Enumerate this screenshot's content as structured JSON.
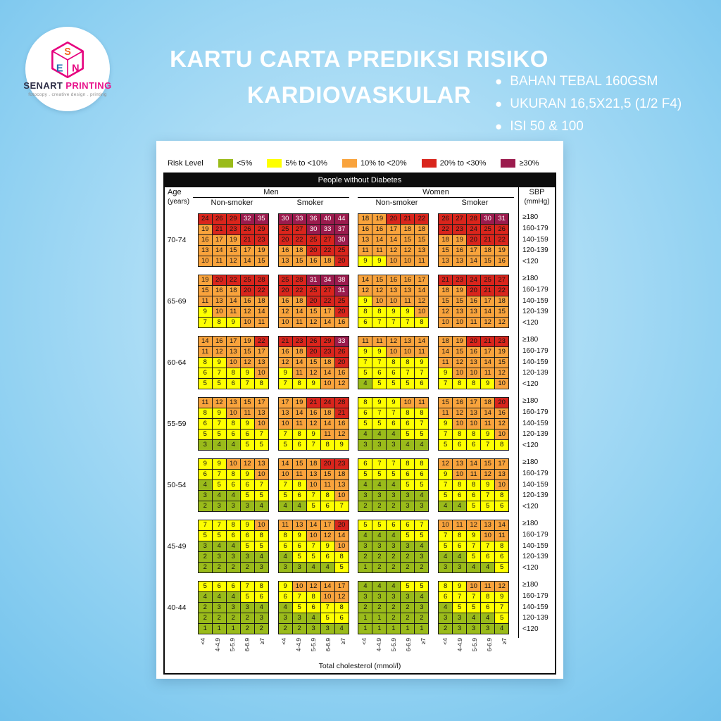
{
  "branding": {
    "name_primary": "SENART",
    "name_secondary": "PRINTING",
    "tagline": "fotocopy . creative design . printing",
    "cube_letters": [
      "S",
      "E",
      "N"
    ]
  },
  "title_line1": "KARTU CARTA PREDIKSI RISIKO",
  "title_line2": "KARDIOVASKULAR",
  "features": [
    "BAHAN TEBAL 160GSM",
    "UKURAN 16,5X21,5 (1/2 F4)",
    "ISI 50 & 100"
  ],
  "chart": {
    "legend_label": "Risk Level",
    "header": "People without Diabetes",
    "col_age_label": "Age",
    "col_age_sub": "(years)",
    "col_men": "Men",
    "col_women": "Women",
    "col_nonsmoker": "Non-smoker",
    "col_smoker": "Smoker",
    "col_sbp": "SBP",
    "col_sbp_sub": "(mmHg)",
    "sbp_rows": [
      "≥180",
      "160-179",
      "140-159",
      "120-139",
      "<120"
    ],
    "cholesterol_ticks": [
      "<4",
      "4-4.9",
      "5-5.9",
      "6-6.9",
      "≥7"
    ],
    "x_axis_label": "Total cholesterol (mmol/l)"
  },
  "chart_data": {
    "type": "heatmap",
    "title": "People without Diabetes",
    "x": [
      "<4",
      "4-4.9",
      "5-5.9",
      "6-6.9",
      "≥7"
    ],
    "xlabel": "Total cholesterol (mmol/l)",
    "y": [
      "≥180",
      "160-179",
      "140-159",
      "120-139",
      "<120"
    ],
    "ylabel": "SBP (mmHg)",
    "legend_position": "top",
    "risk_bins": [
      {
        "label": "<5%",
        "max": 5,
        "color": "#9abb1a",
        "text": "#141414"
      },
      {
        "label": "5% to <10%",
        "max": 10,
        "color": "#feff00",
        "text": "#141414"
      },
      {
        "label": "10% to <20%",
        "max": 20,
        "color": "#f9a33c",
        "text": "#141414"
      },
      {
        "label": "20% to <30%",
        "max": 30,
        "color": "#d9251c",
        "text": "#141414"
      },
      {
        "label": "≥30%",
        "max": null,
        "color": "#9b1b4d",
        "text": "#ffffff"
      }
    ],
    "age_groups": [
      {
        "age": "70-74",
        "grids": {
          "men_nonsmoker": [
            [
              24,
              26,
              29,
              32,
              35
            ],
            [
              19,
              21,
              23,
              26,
              29
            ],
            [
              16,
              17,
              19,
              21,
              23
            ],
            [
              13,
              14,
              15,
              17,
              19
            ],
            [
              10,
              11,
              12,
              14,
              15
            ]
          ],
          "men_smoker": [
            [
              30,
              33,
              36,
              40,
              44
            ],
            [
              25,
              27,
              30,
              33,
              37
            ],
            [
              20,
              22,
              25,
              27,
              30
            ],
            [
              16,
              18,
              20,
              22,
              25
            ],
            [
              13,
              15,
              16,
              18,
              20
            ]
          ],
          "women_nonsmoker": [
            [
              18,
              19,
              20,
              21,
              22
            ],
            [
              16,
              16,
              17,
              18,
              18
            ],
            [
              13,
              14,
              14,
              15,
              15
            ],
            [
              11,
              11,
              12,
              12,
              13
            ],
            [
              9,
              9,
              10,
              10,
              11
            ]
          ],
          "women_smoker": [
            [
              26,
              27,
              28,
              30,
              31
            ],
            [
              22,
              23,
              24,
              25,
              26
            ],
            [
              18,
              19,
              20,
              21,
              22
            ],
            [
              15,
              16,
              17,
              18,
              19
            ],
            [
              13,
              13,
              14,
              15,
              16
            ]
          ]
        }
      },
      {
        "age": "65-69",
        "grids": {
          "men_nonsmoker": [
            [
              19,
              20,
              22,
              25,
              28
            ],
            [
              15,
              16,
              18,
              20,
              22
            ],
            [
              11,
              13,
              14,
              16,
              18
            ],
            [
              9,
              10,
              11,
              12,
              14
            ],
            [
              7,
              8,
              9,
              10,
              11
            ]
          ],
          "men_smoker": [
            [
              25,
              28,
              31,
              34,
              38
            ],
            [
              20,
              22,
              25,
              27,
              31
            ],
            [
              16,
              18,
              20,
              22,
              25
            ],
            [
              12,
              14,
              15,
              17,
              20
            ],
            [
              10,
              11,
              12,
              14,
              16
            ]
          ],
          "women_nonsmoker": [
            [
              14,
              15,
              16,
              16,
              17
            ],
            [
              12,
              12,
              13,
              13,
              14
            ],
            [
              9,
              10,
              10,
              11,
              12
            ],
            [
              8,
              8,
              9,
              9,
              10
            ],
            [
              6,
              7,
              7,
              7,
              8
            ]
          ],
          "women_smoker": [
            [
              21,
              23,
              24,
              25,
              27
            ],
            [
              18,
              19,
              20,
              21,
              22
            ],
            [
              15,
              15,
              16,
              17,
              18
            ],
            [
              12,
              13,
              13,
              14,
              15
            ],
            [
              10,
              10,
              11,
              12,
              12
            ]
          ]
        }
      },
      {
        "age": "60-64",
        "grids": {
          "men_nonsmoker": [
            [
              14,
              16,
              17,
              19,
              22
            ],
            [
              11,
              12,
              13,
              15,
              17
            ],
            [
              8,
              9,
              10,
              12,
              13
            ],
            [
              6,
              7,
              8,
              9,
              10
            ],
            [
              5,
              5,
              6,
              7,
              8
            ]
          ],
          "men_smoker": [
            [
              21,
              23,
              26,
              29,
              33
            ],
            [
              16,
              18,
              20,
              23,
              26
            ],
            [
              12,
              14,
              15,
              18,
              20
            ],
            [
              9,
              11,
              12,
              14,
              16
            ],
            [
              7,
              8,
              9,
              10,
              12
            ]
          ],
          "women_nonsmoker": [
            [
              11,
              11,
              12,
              13,
              14
            ],
            [
              9,
              9,
              10,
              10,
              11
            ],
            [
              7,
              7,
              8,
              8,
              9
            ],
            [
              5,
              6,
              6,
              7,
              7
            ],
            [
              4,
              5,
              5,
              5,
              6
            ]
          ],
          "women_smoker": [
            [
              18,
              19,
              20,
              21,
              23
            ],
            [
              14,
              15,
              16,
              17,
              19
            ],
            [
              11,
              12,
              13,
              14,
              15
            ],
            [
              9,
              10,
              10,
              11,
              12
            ],
            [
              7,
              8,
              8,
              9,
              10
            ]
          ]
        }
      },
      {
        "age": "55-59",
        "grids": {
          "men_nonsmoker": [
            [
              11,
              12,
              13,
              15,
              17
            ],
            [
              8,
              9,
              10,
              11,
              13
            ],
            [
              6,
              7,
              8,
              9,
              10
            ],
            [
              5,
              5,
              6,
              6,
              7
            ],
            [
              3,
              4,
              4,
              5,
              5
            ]
          ],
          "men_smoker": [
            [
              17,
              19,
              21,
              24,
              28
            ],
            [
              13,
              14,
              16,
              18,
              21
            ],
            [
              10,
              11,
              12,
              14,
              16
            ],
            [
              7,
              8,
              9,
              11,
              12
            ],
            [
              5,
              6,
              7,
              8,
              9
            ]
          ],
          "women_nonsmoker": [
            [
              8,
              9,
              9,
              10,
              11
            ],
            [
              6,
              7,
              7,
              8,
              8
            ],
            [
              5,
              5,
              6,
              6,
              7
            ],
            [
              4,
              4,
              4,
              5,
              5
            ],
            [
              3,
              3,
              3,
              4,
              4
            ]
          ],
          "women_smoker": [
            [
              15,
              16,
              17,
              18,
              20
            ],
            [
              11,
              12,
              13,
              14,
              16
            ],
            [
              9,
              10,
              10,
              11,
              12
            ],
            [
              7,
              8,
              8,
              9,
              10
            ],
            [
              5,
              6,
              6,
              7,
              8
            ]
          ]
        }
      },
      {
        "age": "50-54",
        "grids": {
          "men_nonsmoker": [
            [
              9,
              9,
              10,
              12,
              13
            ],
            [
              6,
              7,
              8,
              9,
              10
            ],
            [
              4,
              5,
              6,
              6,
              7
            ],
            [
              3,
              4,
              4,
              5,
              5
            ],
            [
              2,
              3,
              3,
              3,
              4
            ]
          ],
          "men_smoker": [
            [
              14,
              15,
              18,
              20,
              23
            ],
            [
              10,
              11,
              13,
              15,
              18
            ],
            [
              7,
              8,
              10,
              11,
              13
            ],
            [
              5,
              6,
              7,
              8,
              10
            ],
            [
              4,
              4,
              5,
              6,
              7
            ]
          ],
          "women_nonsmoker": [
            [
              6,
              7,
              7,
              8,
              8
            ],
            [
              5,
              5,
              5,
              6,
              6
            ],
            [
              4,
              4,
              4,
              5,
              5
            ],
            [
              3,
              3,
              3,
              3,
              4
            ],
            [
              2,
              2,
              2,
              3,
              3
            ]
          ],
          "women_smoker": [
            [
              12,
              13,
              14,
              15,
              17
            ],
            [
              9,
              10,
              11,
              12,
              13
            ],
            [
              7,
              8,
              8,
              9,
              10
            ],
            [
              5,
              6,
              6,
              7,
              8
            ],
            [
              4,
              4,
              5,
              5,
              6
            ]
          ]
        }
      },
      {
        "age": "45-49",
        "grids": {
          "men_nonsmoker": [
            [
              7,
              7,
              8,
              9,
              10
            ],
            [
              5,
              5,
              6,
              6,
              8
            ],
            [
              3,
              4,
              4,
              5,
              5
            ],
            [
              2,
              3,
              3,
              3,
              4
            ],
            [
              2,
              2,
              2,
              2,
              3
            ]
          ],
          "men_smoker": [
            [
              11,
              13,
              14,
              17,
              20
            ],
            [
              8,
              9,
              10,
              12,
              14
            ],
            [
              6,
              6,
              7,
              9,
              10
            ],
            [
              4,
              5,
              5,
              6,
              8
            ],
            [
              3,
              3,
              4,
              4,
              5
            ]
          ],
          "women_nonsmoker": [
            [
              5,
              5,
              6,
              6,
              7
            ],
            [
              4,
              4,
              4,
              5,
              5
            ],
            [
              3,
              3,
              3,
              3,
              4
            ],
            [
              2,
              2,
              2,
              2,
              3
            ],
            [
              1,
              2,
              2,
              2,
              2
            ]
          ],
          "women_smoker": [
            [
              10,
              11,
              12,
              13,
              14
            ],
            [
              7,
              8,
              9,
              10,
              11
            ],
            [
              5,
              6,
              7,
              7,
              8
            ],
            [
              4,
              4,
              5,
              6,
              6
            ],
            [
              3,
              3,
              4,
              4,
              5
            ]
          ]
        }
      },
      {
        "age": "40-44",
        "grids": {
          "men_nonsmoker": [
            [
              5,
              6,
              6,
              7,
              8
            ],
            [
              4,
              4,
              4,
              5,
              6
            ],
            [
              2,
              3,
              3,
              3,
              4
            ],
            [
              2,
              2,
              2,
              2,
              3
            ],
            [
              1,
              1,
              1,
              2,
              2
            ]
          ],
          "men_smoker": [
            [
              9,
              10,
              12,
              14,
              17
            ],
            [
              6,
              7,
              8,
              10,
              12
            ],
            [
              4,
              5,
              6,
              7,
              8
            ],
            [
              3,
              3,
              4,
              5,
              6
            ],
            [
              2,
              2,
              3,
              3,
              4
            ]
          ],
          "women_nonsmoker": [
            [
              4,
              4,
              4,
              5,
              5
            ],
            [
              3,
              3,
              3,
              3,
              4
            ],
            [
              2,
              2,
              2,
              2,
              3
            ],
            [
              1,
              1,
              2,
              2,
              2
            ],
            [
              1,
              1,
              1,
              1,
              1
            ]
          ],
          "women_smoker": [
            [
              8,
              9,
              10,
              11,
              12
            ],
            [
              6,
              7,
              7,
              8,
              9
            ],
            [
              4,
              5,
              5,
              6,
              7
            ],
            [
              3,
              3,
              4,
              4,
              5
            ],
            [
              2,
              3,
              3,
              3,
              4
            ]
          ]
        }
      }
    ]
  }
}
